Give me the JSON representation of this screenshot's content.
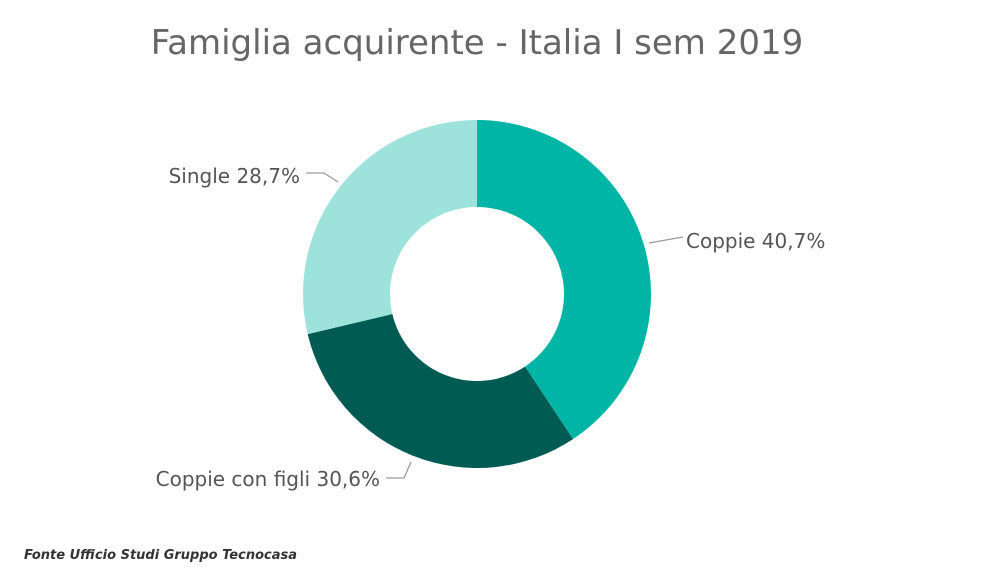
{
  "source": "Fonte Ufficio Studi Gruppo Tecnocasa",
  "chart_data": {
    "type": "pie",
    "title": "Famiglia acquirente - Italia I sem 2019",
    "categories": [
      "Coppie",
      "Coppie con figli",
      "Single"
    ],
    "values": [
      40.7,
      30.6,
      28.7
    ],
    "labels": [
      "Coppie 40,7%",
      "Coppie con figli 30,6%",
      "Single 28,7%"
    ],
    "colors": [
      "#00B5A5",
      "#005C52",
      "#9DE3DC"
    ],
    "donut": true,
    "legend": "none"
  }
}
